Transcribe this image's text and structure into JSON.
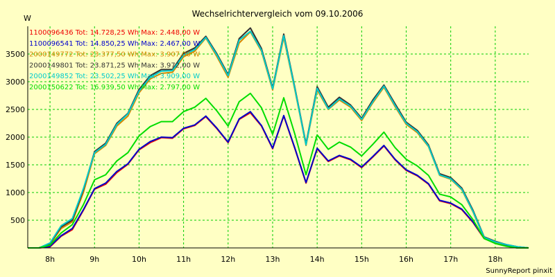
{
  "chart_data": {
    "type": "line",
    "title": "Wechselrichtervergleich vom 09.10.2006",
    "ylabel": "W",
    "xlabel": "",
    "footer": "SunnyReport pinxit",
    "ylim": [
      0,
      4000
    ],
    "xlim": [
      7.5,
      18.75
    ],
    "yticks": [
      500,
      1000,
      1500,
      2000,
      2500,
      3000,
      3500
    ],
    "xticks": [
      {
        "value": 8,
        "label": "8h"
      },
      {
        "value": 9,
        "label": "9h"
      },
      {
        "value": 10,
        "label": "10h"
      },
      {
        "value": 11,
        "label": "11h"
      },
      {
        "value": 12,
        "label": "12h"
      },
      {
        "value": 13,
        "label": "13h"
      },
      {
        "value": 14,
        "label": "14h"
      },
      {
        "value": 15,
        "label": "15h"
      },
      {
        "value": 16,
        "label": "16h"
      },
      {
        "value": 17,
        "label": "17h"
      },
      {
        "value": 18,
        "label": "18h"
      }
    ],
    "grid": true,
    "colors": {
      "background": "#ffffc4",
      "grid": "#00cc00",
      "axis": "#000000"
    },
    "x": [
      7.5,
      7.75,
      8,
      8.25,
      8.5,
      8.75,
      9,
      9.25,
      9.5,
      9.75,
      10,
      10.25,
      10.5,
      10.75,
      11,
      11.25,
      11.5,
      11.75,
      12,
      12.25,
      12.5,
      12.75,
      13,
      13.25,
      13.5,
      13.75,
      14,
      14.25,
      14.5,
      14.75,
      15,
      15.25,
      15.5,
      15.75,
      16,
      16.25,
      16.5,
      16.75,
      17,
      17.25,
      17.5,
      17.75,
      18,
      18.25,
      18.5,
      18.75
    ],
    "series": [
      {
        "name": "1100096436",
        "legend": "1100096436 Tot: 14.728,25 Wh Max: 2.448,00 W",
        "color": "#ee0000",
        "values": [
          0,
          0,
          20,
          210,
          330,
          680,
          1060,
          1150,
          1360,
          1510,
          1770,
          1900,
          1990,
          1980,
          2150,
          2210,
          2370,
          2150,
          1900,
          2320,
          2440,
          2200,
          1790,
          2380,
          1790,
          1170,
          1790,
          1560,
          1660,
          1590,
          1450,
          1640,
          1840,
          1590,
          1400,
          1300,
          1150,
          850,
          800,
          690,
          460,
          170,
          90,
          40,
          0,
          0
        ]
      },
      {
        "name": "1100096541",
        "legend": "1100096541 Tot: 14.850,25 Wh Max: 2.467,00 W",
        "color": "#0000cc",
        "values": [
          0,
          0,
          30,
          220,
          350,
          690,
          1070,
          1170,
          1380,
          1520,
          1780,
          1920,
          2000,
          1990,
          2160,
          2220,
          2380,
          2160,
          1910,
          2330,
          2460,
          2210,
          1800,
          2390,
          1800,
          1180,
          1800,
          1570,
          1670,
          1600,
          1460,
          1650,
          1850,
          1600,
          1410,
          1310,
          1160,
          860,
          810,
          700,
          470,
          180,
          100,
          40,
          0,
          0
        ]
      },
      {
        "name": "2000149772",
        "legend": "2000149772 Tot: 23.377,50 Wh Max: 3.907,00 W",
        "color": "#d58800",
        "values": [
          0,
          0,
          70,
          350,
          470,
          1000,
          1700,
          1850,
          2200,
          2380,
          2800,
          3050,
          3150,
          3170,
          3450,
          3550,
          3790,
          3450,
          3080,
          3700,
          3900,
          3550,
          2850,
          3800,
          2850,
          1850,
          2850,
          2500,
          2670,
          2540,
          2300,
          2620,
          2900,
          2550,
          2230,
          2080,
          1830,
          1310,
          1240,
          1050,
          650,
          180,
          100,
          60,
          20,
          0
        ]
      },
      {
        "name": "2000149801",
        "legend": "2000149801 Tot: 23.871,25 Wh Max: 3.972,00 W",
        "color": "#333333",
        "values": [
          0,
          0,
          80,
          380,
          500,
          1050,
          1740,
          1890,
          2250,
          2430,
          2860,
          3110,
          3220,
          3220,
          3510,
          3610,
          3820,
          3500,
          3130,
          3780,
          3970,
          3600,
          2890,
          3860,
          2890,
          1880,
          2910,
          2540,
          2720,
          2580,
          2340,
          2670,
          2940,
          2600,
          2270,
          2120,
          1860,
          1340,
          1270,
          1080,
          680,
          200,
          120,
          60,
          20,
          0
        ]
      },
      {
        "name": "2000149852",
        "legend": "2000149852 Tot: 23.502,25 Wh Max: 3.909,00 W",
        "color": "#00cccc",
        "values": [
          0,
          0,
          90,
          400,
          530,
          1070,
          1720,
          1870,
          2230,
          2420,
          2830,
          3080,
          3190,
          3200,
          3480,
          3580,
          3800,
          3480,
          3110,
          3750,
          3910,
          3570,
          2870,
          3830,
          2870,
          1860,
          2880,
          2510,
          2690,
          2560,
          2320,
          2640,
          2920,
          2570,
          2250,
          2100,
          1840,
          1320,
          1250,
          1060,
          660,
          190,
          110,
          60,
          20,
          0
        ]
      },
      {
        "name": "2000150622",
        "legend": "2000150622 Tot: 16.939,50 Wh Max: 2.797,00 W",
        "color": "#00dd00",
        "values": [
          0,
          0,
          50,
          270,
          420,
          780,
          1230,
          1320,
          1570,
          1720,
          2020,
          2190,
          2280,
          2280,
          2460,
          2540,
          2700,
          2470,
          2200,
          2640,
          2790,
          2530,
          2050,
          2710,
          2050,
          1320,
          2040,
          1780,
          1910,
          1820,
          1660,
          1870,
          2090,
          1810,
          1600,
          1480,
          1310,
          970,
          920,
          780,
          510,
          170,
          80,
          30,
          0,
          0
        ]
      }
    ]
  }
}
